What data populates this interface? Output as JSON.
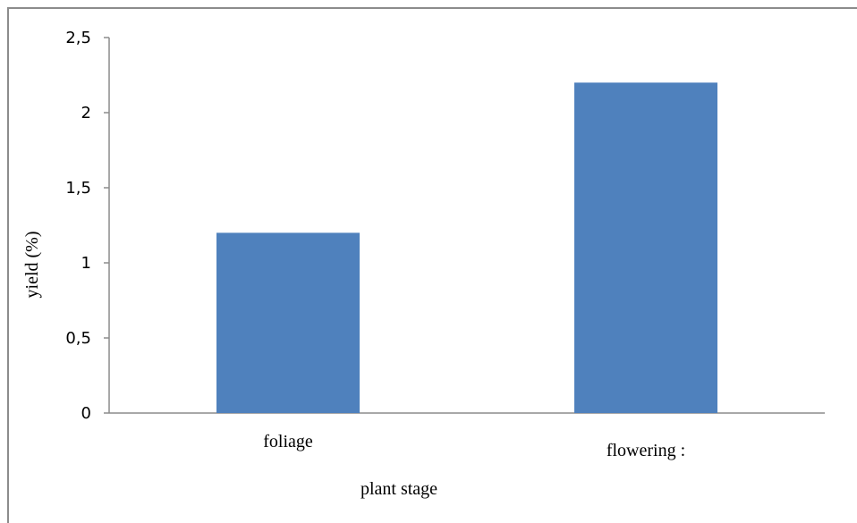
{
  "chart_data": {
    "type": "bar",
    "categories": [
      "foliage",
      "flowering :"
    ],
    "values": [
      1.2,
      2.2
    ],
    "xlabel": "plant stage",
    "ylabel": "yield (%)",
    "ylim": [
      0,
      2.5
    ],
    "yticks": [
      "0",
      "0,5",
      "1",
      "1,5",
      "2",
      "2,5"
    ],
    "grid": false,
    "legend": "none",
    "bar_color": "#4f81bd"
  }
}
